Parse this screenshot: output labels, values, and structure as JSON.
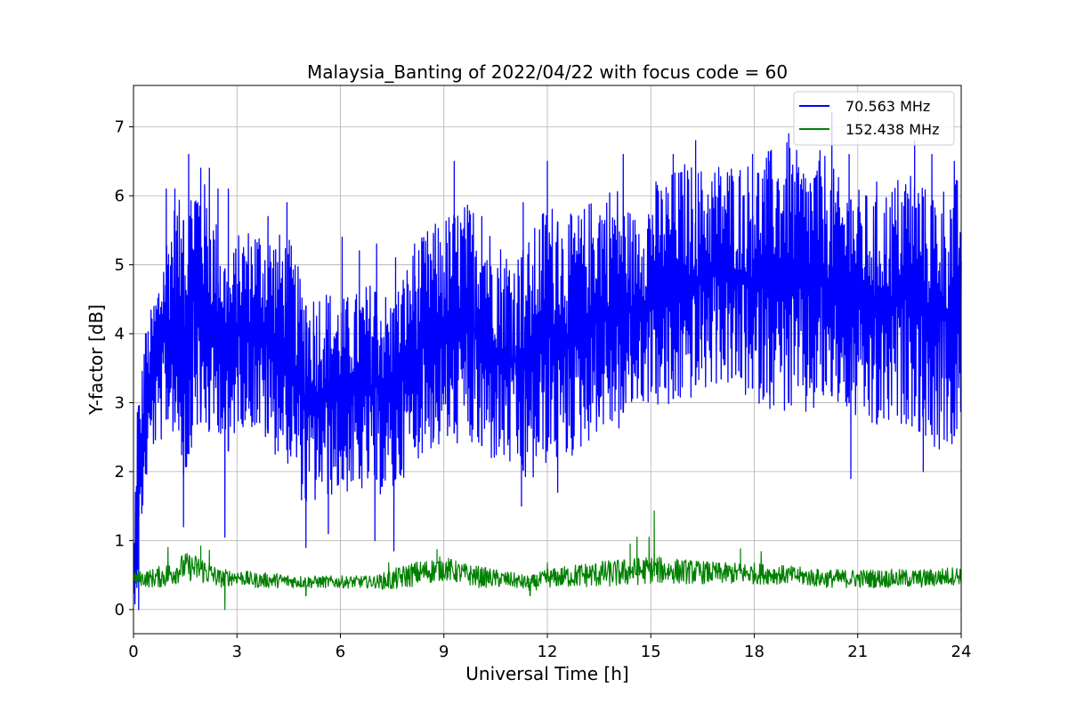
{
  "chart_data": {
    "type": "line",
    "title": "Malaysia_Banting of 2022/04/22 with focus code = 60",
    "xlabel": "Universal Time [h]",
    "ylabel": "Y-factor [dB]",
    "xlim": [
      0,
      24
    ],
    "ylim": [
      -0.35,
      7.6
    ],
    "x_ticks": [
      0,
      3,
      6,
      9,
      12,
      15,
      18,
      21,
      24
    ],
    "y_ticks": [
      0,
      1,
      2,
      3,
      4,
      5,
      6,
      7
    ],
    "grid": true,
    "legend_position": "top-right",
    "series": [
      {
        "name": "70.563 MHz",
        "color": "#0000ff",
        "x": [
          0.0,
          0.1,
          0.2,
          0.3,
          0.5,
          0.75,
          1.0,
          1.25,
          1.5,
          1.75,
          2.0,
          2.25,
          2.5,
          2.75,
          3.0,
          3.5,
          4.0,
          4.5,
          5.0,
          5.5,
          6.0,
          6.5,
          7.0,
          7.5,
          8.0,
          8.5,
          9.0,
          9.5,
          10.0,
          10.5,
          11.0,
          11.5,
          12.0,
          12.5,
          13.0,
          13.5,
          14.0,
          14.5,
          15.0,
          15.5,
          16.0,
          16.5,
          17.0,
          17.5,
          18.0,
          18.5,
          19.0,
          19.5,
          20.0,
          20.5,
          21.0,
          21.5,
          22.0,
          22.5,
          23.0,
          23.5,
          24.0
        ],
        "low": [
          0.0,
          0.1,
          0.9,
          1.5,
          2.2,
          2.3,
          2.5,
          2.4,
          1.6,
          2.5,
          2.4,
          2.3,
          2.5,
          2.0,
          2.6,
          2.5,
          2.2,
          2.0,
          1.3,
          1.5,
          1.6,
          1.6,
          1.6,
          1.5,
          2.0,
          2.2,
          2.2,
          2.3,
          2.1,
          2.0,
          1.9,
          1.6,
          2.0,
          2.0,
          2.2,
          2.5,
          2.4,
          2.8,
          2.9,
          2.7,
          2.9,
          3.0,
          3.2,
          3.0,
          2.9,
          2.8,
          2.7,
          2.6,
          2.8,
          2.8,
          2.6,
          2.4,
          2.5,
          2.6,
          2.3,
          2.1,
          2.3
        ],
        "high": [
          0.3,
          3.3,
          3.2,
          4.0,
          4.4,
          5.0,
          5.7,
          6.1,
          5.9,
          6.6,
          6.4,
          6.0,
          5.6,
          5.0,
          5.5,
          5.7,
          5.6,
          5.5,
          4.7,
          4.8,
          4.6,
          4.7,
          4.9,
          4.6,
          5.2,
          5.6,
          5.8,
          6.0,
          6.0,
          5.5,
          5.3,
          5.5,
          6.1,
          5.8,
          5.9,
          6.2,
          6.3,
          5.8,
          6.2,
          6.4,
          6.6,
          6.5,
          6.6,
          6.6,
          6.6,
          6.8,
          6.9,
          6.6,
          6.8,
          6.3,
          6.2,
          6.1,
          6.3,
          6.6,
          6.2,
          6.3,
          6.4
        ],
        "spikes": [
          [
            0.35,
            4.0
          ],
          [
            0.95,
            6.1
          ],
          [
            1.2,
            6.1
          ],
          [
            1.6,
            6.6
          ],
          [
            1.95,
            6.4
          ],
          [
            2.2,
            6.4
          ],
          [
            2.45,
            6.1
          ],
          [
            2.75,
            6.1
          ],
          [
            3.9,
            5.7
          ],
          [
            4.45,
            5.9
          ],
          [
            6.05,
            5.4
          ],
          [
            6.55,
            5.2
          ],
          [
            7.05,
            5.3
          ],
          [
            7.6,
            5.1
          ],
          [
            8.15,
            5.3
          ],
          [
            8.7,
            5.4
          ],
          [
            9.3,
            6.5
          ],
          [
            10.1,
            5.7
          ],
          [
            11.3,
            5.9
          ],
          [
            12.0,
            6.5
          ],
          [
            13.5,
            5.6
          ],
          [
            14.2,
            6.6
          ],
          [
            15.15,
            6.2
          ],
          [
            15.65,
            6.6
          ],
          [
            16.3,
            6.8
          ],
          [
            17.35,
            6.2
          ],
          [
            17.95,
            6.6
          ],
          [
            18.45,
            6.5
          ],
          [
            19.0,
            6.9
          ],
          [
            20.25,
            7.2
          ],
          [
            20.75,
            6.6
          ],
          [
            21.55,
            6.2
          ],
          [
            22.65,
            6.8
          ],
          [
            23.15,
            6.6
          ],
          [
            23.8,
            6.5
          ]
        ],
        "dips": [
          [
            0.15,
            0.0
          ],
          [
            1.45,
            1.2
          ],
          [
            2.65,
            1.05
          ],
          [
            5.0,
            0.9
          ],
          [
            5.65,
            1.1
          ],
          [
            7.0,
            1.0
          ],
          [
            7.55,
            0.85
          ],
          [
            11.25,
            1.5
          ],
          [
            12.3,
            1.7
          ],
          [
            20.8,
            1.9
          ],
          [
            22.9,
            2.0
          ]
        ]
      },
      {
        "name": "152.438 MHz",
        "color": "#008000",
        "x": [
          0.0,
          0.5,
          1.0,
          1.5,
          2.0,
          2.5,
          3.0,
          3.5,
          4.0,
          5.0,
          6.0,
          7.0,
          7.5,
          8.0,
          8.5,
          9.0,
          9.5,
          10.0,
          11.0,
          11.5,
          12.0,
          12.5,
          13.0,
          14.0,
          15.0,
          16.0,
          17.0,
          18.0,
          19.0,
          20.0,
          21.0,
          22.0,
          23.0,
          24.0
        ],
        "low": [
          0.35,
          0.3,
          0.3,
          0.4,
          0.35,
          0.3,
          0.35,
          0.3,
          0.3,
          0.3,
          0.3,
          0.3,
          0.25,
          0.3,
          0.35,
          0.4,
          0.35,
          0.3,
          0.3,
          0.25,
          0.3,
          0.3,
          0.3,
          0.3,
          0.35,
          0.35,
          0.35,
          0.35,
          0.35,
          0.3,
          0.3,
          0.3,
          0.3,
          0.35
        ],
        "high": [
          0.55,
          0.6,
          0.7,
          0.85,
          0.8,
          0.6,
          0.6,
          0.55,
          0.55,
          0.5,
          0.5,
          0.5,
          0.6,
          0.7,
          0.75,
          0.8,
          0.7,
          0.65,
          0.55,
          0.5,
          0.6,
          0.65,
          0.7,
          0.75,
          0.8,
          0.75,
          0.7,
          0.7,
          0.65,
          0.6,
          0.6,
          0.6,
          0.6,
          0.65
        ],
        "spikes": [
          [
            1.0,
            0.9
          ],
          [
            1.95,
            0.92
          ],
          [
            2.2,
            0.86
          ],
          [
            7.4,
            0.68
          ],
          [
            8.8,
            0.87
          ],
          [
            12.0,
            0.68
          ],
          [
            14.4,
            0.95
          ],
          [
            14.6,
            1.05
          ],
          [
            14.95,
            1.05
          ],
          [
            15.1,
            1.43
          ],
          [
            17.6,
            0.88
          ],
          [
            18.2,
            0.84
          ]
        ],
        "dips": [
          [
            2.65,
            0.0
          ],
          [
            5.0,
            0.3
          ],
          [
            11.5,
            0.25
          ]
        ]
      }
    ]
  }
}
